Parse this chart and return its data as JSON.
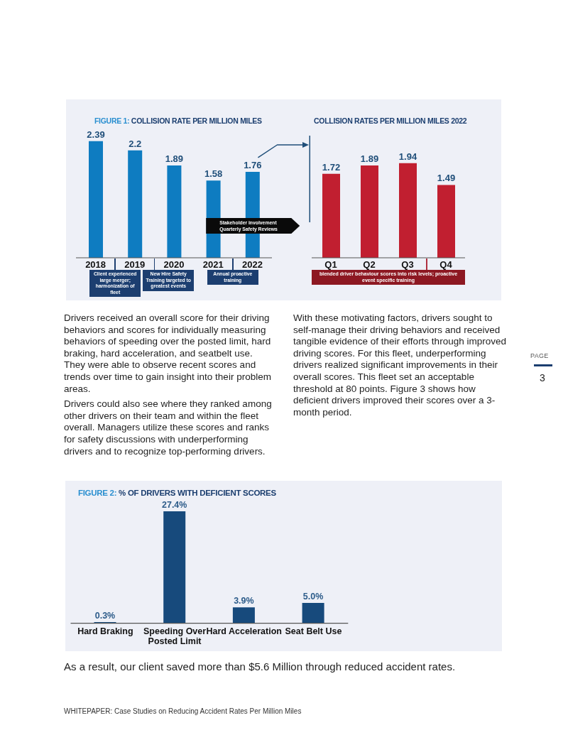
{
  "chart_data": [
    {
      "type": "bar",
      "title": "FIGURE 1: COLLISION RATE PER MILLION MILES",
      "categories": [
        "2018",
        "2019",
        "2020",
        "2021",
        "2022"
      ],
      "values": [
        2.39,
        2.2,
        1.89,
        1.58,
        1.76
      ],
      "color": "#0e7cc1",
      "data_labels": true,
      "tick_labels": "x",
      "annotations": [
        "Client experienced large merger; harmonization of fleet",
        "New Hire Safety Training targeted to greatest events",
        "Annual proactive training",
        "Stakeholder involvement Quarterly Safety Reviews"
      ]
    },
    {
      "type": "bar",
      "title": "COLLISION RATES PER MILLION MILES 2022",
      "categories": [
        "Q1",
        "Q2",
        "Q3",
        "Q4"
      ],
      "values": [
        1.72,
        1.89,
        1.94,
        1.49
      ],
      "color": "#c11f30",
      "data_labels": true,
      "tick_labels": "x",
      "annotations": [
        "blended driver behaviour scores into risk levels; proactive event specific training"
      ]
    },
    {
      "type": "bar",
      "title": "FIGURE 2: % OF DRIVERS WITH DEFICIENT SCORES",
      "categories": [
        "Hard Braking",
        "Speeding Over Posted Limit",
        "Hard Acceleration",
        "Seat Belt Use"
      ],
      "values": [
        0.3,
        27.4,
        3.9,
        5.0
      ],
      "value_labels": [
        "0.3%",
        "27.4%",
        "3.9%",
        "5.0%"
      ],
      "color": "#174a7c",
      "tick_labels": "x",
      "annotations": [
        "Drivers received an overall score for their driving behaviors and scores for individually measuring behaviors of speeding over the posted limit, hard braking, hard acceleration, and seatbelt use. They were able to observe recent scores and trends over time to gain insight into their problem areas.",
        "Drivers could also see where they ranked among other drivers on their team and within the fleet overall. Managers utilize these scores and ranks for safety discussions with underperforming drivers and to recognize top-performing drivers.",
        "With these motivating factors, drivers sought to self-manage their driving behaviors and received tangible evidence of their efforts through improved driving scores. For this fleet, underperforming drivers realized significant improvements in their overall scores. This fleet set an acceptable threshold at 80 points. Figure 3 shows how deficient drivers improved their scores over a 3-month period.",
        "As a result, our client saved more than $5.6 Million through reduced accident rates.",
        "WHITEPAPER: Case Studies on Reducing Accident Rates Per Million Miles",
        "PAGE",
        "3"
      ]
    }
  ]
}
